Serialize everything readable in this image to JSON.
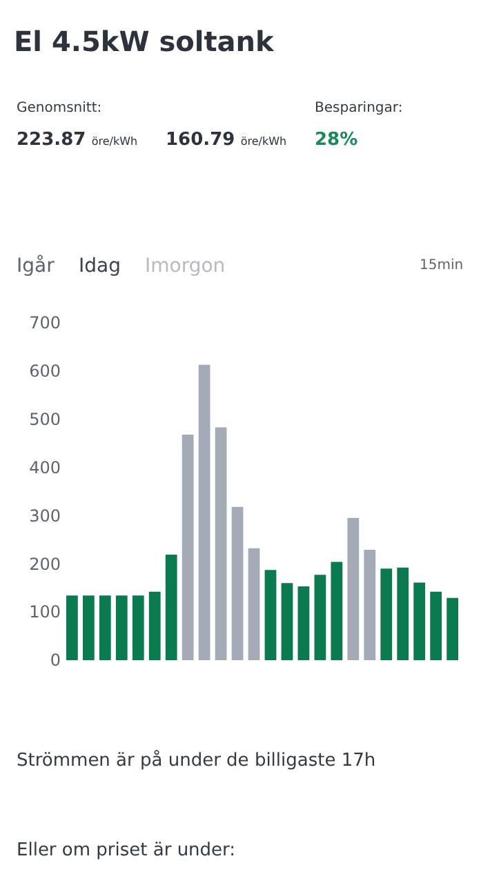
{
  "chart_data": {
    "type": "bar",
    "title": "El 4.5kW soltank",
    "categories": [
      null,
      null,
      null,
      null,
      null,
      null,
      null,
      null,
      null,
      null,
      null,
      null,
      null,
      null,
      null,
      null,
      null,
      null,
      null,
      null,
      null,
      null,
      null,
      null
    ],
    "values": [
      134,
      134,
      134,
      134,
      134,
      142,
      219,
      468,
      613,
      483,
      318,
      232,
      187,
      160,
      153,
      177,
      204,
      295,
      229,
      190,
      192,
      161,
      142,
      129
    ],
    "colors": [
      "#0b7a4e",
      "#0b7a4e",
      "#0b7a4e",
      "#0b7a4e",
      "#0b7a4e",
      "#0b7a4e",
      "#0b7a4e",
      "#a4aab6",
      "#a4aab6",
      "#a4aab6",
      "#a4aab6",
      "#a4aab6",
      "#0b7a4e",
      "#0b7a4e",
      "#0b7a4e",
      "#0b7a4e",
      "#0b7a4e",
      "#a4aab6",
      "#a4aab6",
      "#0b7a4e",
      "#0b7a4e",
      "#0b7a4e",
      "#0b7a4e",
      "#0b7a4e"
    ],
    "ylim": [
      0,
      700
    ],
    "yticks": [
      0,
      100,
      200,
      300,
      400,
      500,
      600,
      700
    ],
    "annotations": [
      "Genomsnitt:",
      "223.87 öre/kWh",
      "160.79 öre/kWh",
      "Besparingar:",
      "28%",
      "Igår",
      "Idag",
      "Imorgon",
      "15min",
      "Strömmen är på under de billigaste 17h",
      "Eller om priset är under:"
    ]
  }
}
